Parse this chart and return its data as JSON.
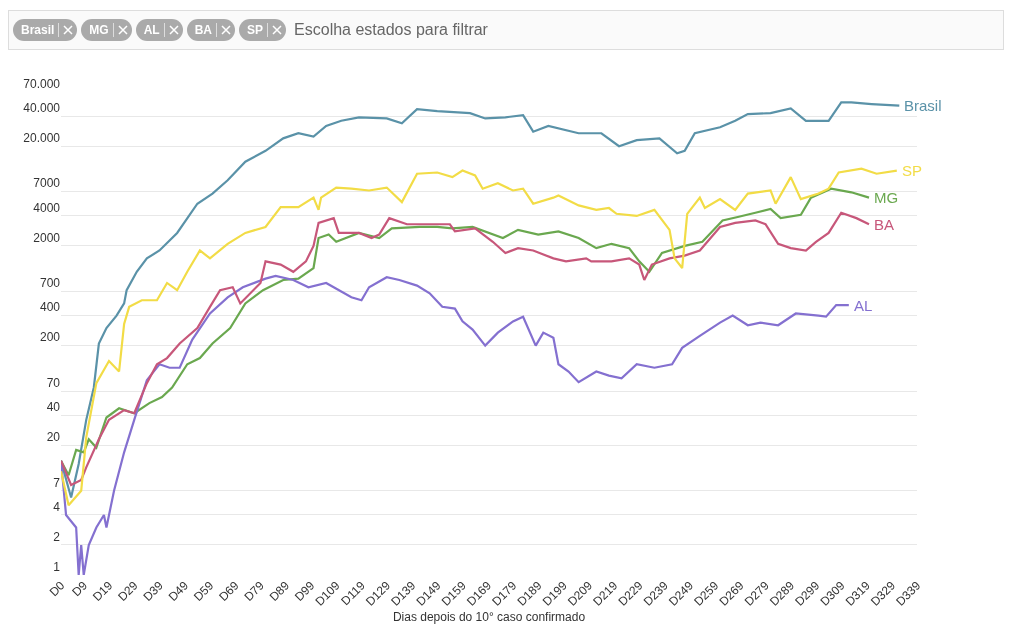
{
  "chart_data": {
    "type": "line",
    "subtitle": "Escolha estados para filtrar",
    "xlabel": "Dias depois do 10° caso confirmado",
    "categories": [
      "D0",
      null,
      null,
      null,
      null,
      null,
      null,
      null,
      null,
      "D9",
      null,
      null,
      null,
      null,
      null,
      null,
      null,
      null,
      null,
      "D19",
      null,
      null,
      null,
      null,
      null,
      null,
      null,
      null,
      null,
      "D29",
      null,
      null,
      null,
      null,
      null,
      null,
      null,
      null,
      null,
      "D39",
      null,
      null,
      null,
      null,
      null,
      null,
      null,
      null,
      null,
      "D49",
      null,
      null,
      null,
      null,
      null,
      null,
      null,
      null,
      null,
      "D59",
      null,
      null,
      null,
      null,
      null,
      null,
      null,
      null,
      null,
      "D69",
      null,
      null,
      null,
      null,
      null,
      null,
      null,
      null,
      null,
      "D79",
      null,
      null,
      null,
      null,
      null,
      null,
      null,
      null,
      null,
      "D89",
      null,
      null,
      null,
      null,
      null,
      null,
      null,
      null,
      null,
      "D99",
      null,
      null,
      null,
      null,
      null,
      null,
      null,
      null,
      null,
      "D109",
      null,
      null,
      null,
      null,
      null,
      null,
      null,
      null,
      null,
      "D119",
      null,
      null,
      null,
      null,
      null,
      null,
      null,
      null,
      null,
      "D129",
      null,
      null,
      null,
      null,
      null,
      null,
      null,
      null,
      null,
      "D139",
      null,
      null,
      null,
      null,
      null,
      null,
      null,
      null,
      null,
      "D149",
      null,
      null,
      null,
      null,
      null,
      null,
      null,
      null,
      null,
      "D159",
      null,
      null,
      null,
      null,
      null,
      null,
      null,
      null,
      null,
      "D169",
      null,
      null,
      null,
      null,
      null,
      null,
      null,
      null,
      null,
      "D179",
      null,
      null,
      null,
      null,
      null,
      null,
      null,
      null,
      null,
      "D189",
      null,
      null,
      null,
      null,
      null,
      null,
      null,
      null,
      null,
      "D199",
      null,
      null,
      null,
      null,
      null,
      null,
      null,
      null,
      null,
      "D209",
      null,
      null,
      null,
      null,
      null,
      null,
      null,
      null,
      null,
      "D219",
      null,
      null,
      null,
      null,
      null,
      null,
      null,
      null,
      null,
      "D229",
      null,
      null,
      null,
      null,
      null,
      null,
      null,
      null,
      null,
      "D239",
      null,
      null,
      null,
      null,
      null,
      null,
      null,
      null,
      null,
      "D249",
      null,
      null,
      null,
      null,
      null,
      null,
      null,
      null,
      null,
      "D259",
      null,
      null,
      null,
      null,
      null,
      null,
      null,
      null,
      null,
      "D269",
      null,
      null,
      null,
      null,
      null,
      null,
      null,
      null,
      null,
      "D279",
      null,
      null,
      null,
      null,
      null,
      null,
      null,
      null,
      null,
      "D289",
      null,
      null,
      null,
      null,
      null,
      null,
      null,
      null,
      null,
      "D299",
      null,
      null,
      null,
      null,
      null,
      null,
      null,
      null,
      null,
      "D309",
      null,
      null,
      null,
      null,
      null,
      null,
      null,
      null,
      null,
      "D319",
      null,
      null,
      null,
      null,
      null,
      null,
      null,
      null,
      null,
      "D329",
      null,
      null,
      null,
      null,
      null,
      null,
      null,
      null,
      null,
      "D339"
    ],
    "ylim": [
      1,
      70000
    ],
    "log": "y",
    "yticks": [
      1,
      2,
      4,
      7,
      20,
      40,
      70,
      200,
      400,
      700,
      2000,
      4000,
      7000,
      {
        "value": 20000,
        "label": "20.000"
      },
      {
        "value": 40000,
        "label": "40.000"
      },
      {
        "value": 70000,
        "label": "70.000"
      }
    ],
    "grid": "y",
    "legend": false,
    "marker": "none",
    "line_style": "solid",
    "series": [
      {
        "name": "Brasil",
        "color": "#5a92a8",
        "values": [
          14,
          null,
          null,
          null,
          6,
          null,
          null,
          13,
          null,
          null,
          36,
          null,
          null,
          76,
          null,
          210,
          null,
          null,
          300,
          null,
          null,
          null,
          400,
          null,
          null,
          530,
          720,
          null,
          null,
          null,
          1100,
          null,
          null,
          null,
          1500,
          null,
          null,
          null,
          null,
          1800,
          null,
          null,
          null,
          null,
          null,
          null,
          2700,
          null,
          null,
          null,
          null,
          null,
          null,
          null,
          5300,
          null,
          null,
          null,
          null,
          null,
          6700,
          null,
          null,
          null,
          null,
          null,
          9100,
          null,
          null,
          null,
          null,
          null,
          null,
          14000,
          null,
          null,
          null,
          null,
          null,
          null,
          null,
          18000,
          null,
          null,
          null,
          null,
          null,
          null,
          24000,
          null,
          null,
          null,
          null,
          null,
          27000,
          null,
          null,
          null,
          null,
          null,
          25000,
          null,
          null,
          null,
          null,
          32000,
          null,
          null,
          null,
          null,
          null,
          36000,
          null,
          null,
          null,
          null,
          null,
          null,
          39000,
          null,
          null,
          null,
          null,
          null,
          null,
          null,
          null,
          null,
          null,
          38000,
          null,
          null,
          null,
          null,
          null,
          34000,
          null,
          null,
          null,
          null,
          null,
          47000,
          null,
          null,
          null,
          null,
          null,
          null,
          null,
          45000,
          null,
          null,
          null,
          null,
          null,
          null,
          null,
          null,
          null,
          null,
          null,
          null,
          43000,
          null,
          null,
          null,
          null,
          null,
          38000,
          null,
          null,
          null,
          null,
          null,
          null,
          null,
          39000,
          null,
          null,
          null,
          null,
          null,
          null,
          41000,
          null,
          null,
          null,
          28000,
          null,
          null,
          null,
          null,
          null,
          32000,
          null,
          null,
          null,
          null,
          null,
          null,
          null,
          null,
          null,
          null,
          null,
          27000,
          null,
          null,
          null,
          null,
          null,
          null,
          null,
          null,
          27000,
          null,
          null,
          null,
          null,
          null,
          null,
          20000,
          null,
          null,
          null,
          null,
          null,
          null,
          23000,
          null,
          null,
          null,
          null,
          null,
          null,
          null,
          null,
          24000,
          null,
          null,
          null,
          null,
          null,
          null,
          17000,
          null,
          null,
          18000,
          null,
          null,
          null,
          27000,
          null,
          null,
          null,
          null,
          null,
          null,
          null,
          null,
          null,
          31000,
          null,
          null,
          null,
          null,
          null,
          36000,
          null,
          null,
          null,
          null,
          42000,
          null,
          null,
          null,
          null,
          null,
          null,
          null,
          null,
          43000,
          null,
          null,
          null,
          null,
          null,
          null,
          null,
          48000,
          null,
          null,
          null,
          null,
          null,
          36000,
          null,
          null,
          null,
          null,
          null,
          null,
          null,
          null,
          36000,
          null,
          null,
          null,
          null,
          55000,
          null,
          null,
          null,
          55000,
          null,
          null,
          null,
          null,
          null,
          null,
          null,
          53000,
          null,
          null,
          null,
          null,
          null,
          null,
          null,
          null,
          null,
          null,
          51000,
          null,
          null,
          null,
          null,
          null,
          null,
          null
        ]
      },
      {
        "name": "MG",
        "color": "#6aa84f",
        "values": [
          14,
          null,
          null,
          10,
          null,
          null,
          18,
          null,
          null,
          17,
          null,
          23,
          null,
          null,
          19,
          null,
          null,
          null,
          38,
          null,
          null,
          null,
          null,
          47,
          null,
          null,
          null,
          null,
          null,
          42,
          null,
          null,
          null,
          null,
          null,
          53,
          null,
          null,
          null,
          null,
          61,
          null,
          null,
          null,
          76,
          null,
          null,
          null,
          null,
          null,
          130,
          null,
          null,
          null,
          null,
          150,
          null,
          null,
          null,
          null,
          210,
          null,
          null,
          null,
          null,
          null,
          null,
          300,
          null,
          null,
          null,
          null,
          null,
          530,
          null,
          null,
          null,
          null,
          null,
          null,
          720,
          null,
          null,
          null,
          null,
          null,
          null,
          null,
          910,
          null,
          null,
          null,
          null,
          null,
          940,
          null,
          null,
          null,
          null,
          null,
          1200,
          null,
          2400,
          null,
          null,
          null,
          2600,
          null,
          null,
          2200,
          null,
          null,
          null,
          null,
          null,
          null,
          null,
          null,
          2700,
          null,
          null,
          null,
          null,
          null,
          null,
          null,
          2400,
          null,
          null,
          null,
          null,
          3000,
          null,
          null,
          null,
          null,
          null,
          null,
          null,
          null,
          null,
          null,
          3100,
          null,
          null,
          null,
          null,
          null,
          null,
          3100,
          null,
          null,
          null,
          null,
          null,
          3000,
          null,
          null,
          null,
          null,
          null,
          null,
          null,
          3100,
          null,
          null,
          null,
          null,
          null,
          null,
          null,
          null,
          null,
          null,
          null,
          2400,
          null,
          null,
          null,
          null,
          null,
          2900,
          null,
          null,
          null,
          null,
          null,
          null,
          null,
          2600,
          null,
          null,
          null,
          null,
          null,
          null,
          null,
          2800,
          null,
          null,
          null,
          null,
          null,
          null,
          null,
          2400,
          null,
          null,
          null,
          null,
          null,
          null,
          1900,
          null,
          null,
          null,
          null,
          null,
          2100,
          null,
          null,
          null,
          null,
          null,
          null,
          1900,
          null,
          null,
          null,
          1400,
          null,
          null,
          null,
          1100,
          null,
          null,
          null,
          null,
          1700,
          null,
          null,
          null,
          null,
          null,
          null,
          null,
          null,
          2000,
          null,
          null,
          null,
          null,
          null,
          null,
          2200,
          null,
          null,
          null,
          null,
          null,
          null,
          null,
          3600,
          null,
          null,
          null,
          null,
          null,
          3900,
          null,
          null,
          null,
          null,
          null,
          null,
          4300,
          null,
          null,
          null,
          null,
          null,
          4700,
          null,
          null,
          null,
          3800,
          null,
          null,
          null,
          null,
          null,
          null,
          null,
          4100,
          null,
          null,
          null,
          6100,
          null,
          null,
          null,
          null,
          null,
          null,
          null,
          7500,
          null,
          null,
          null,
          null,
          null,
          null,
          null,
          6900,
          null,
          null,
          null,
          null,
          null,
          null,
          6100,
          null,
          null,
          null,
          null,
          null,
          null,
          null,
          null,
          null,
          null,
          null,
          null,
          null,
          null,
          null,
          null,
          null,
          null,
          null
        ]
      },
      {
        "name": "AL",
        "color": "#8470d0",
        "values": [
          14,
          null,
          4,
          null,
          null,
          null,
          3,
          1,
          2,
          1,
          null,
          2,
          null,
          null,
          3,
          null,
          null,
          4,
          3,
          null,
          null,
          7,
          null,
          null,
          null,
          17,
          null,
          null,
          null,
          36,
          null,
          null,
          null,
          null,
          90,
          null,
          null,
          null,
          null,
          130,
          null,
          null,
          null,
          120,
          null,
          null,
          null,
          120,
          null,
          null,
          null,
          null,
          230,
          null,
          null,
          null,
          null,
          null,
          null,
          420,
          null,
          null,
          null,
          null,
          null,
          null,
          610,
          null,
          null,
          null,
          null,
          null,
          770,
          null,
          null,
          null,
          null,
          null,
          null,
          null,
          null,
          940,
          null,
          null,
          null,
          1000,
          null,
          null,
          null,
          null,
          null,
          null,
          910,
          null,
          null,
          null,
          null,
          null,
          770,
          null,
          null,
          null,
          null,
          null,
          null,
          850,
          null,
          null,
          null,
          null,
          null,
          null,
          null,
          null,
          null,
          610,
          null,
          null,
          null,
          570,
          null,
          null,
          770,
          null,
          null,
          null,
          null,
          null,
          null,
          970,
          null,
          null,
          null,
          null,
          910,
          null,
          null,
          null,
          null,
          null,
          null,
          800,
          null,
          null,
          null,
          null,
          670,
          null,
          null,
          null,
          null,
          490,
          null,
          null,
          null,
          null,
          470,
          null,
          null,
          350,
          null,
          null,
          null,
          290,
          null,
          null,
          null,
          null,
          200,
          null,
          null,
          null,
          null,
          270,
          null,
          null,
          null,
          null,
          null,
          350,
          null,
          null,
          null,
          390,
          null,
          null,
          null,
          null,
          200,
          null,
          null,
          270,
          null,
          null,
          null,
          240,
          null,
          130,
          null,
          null,
          null,
          110,
          null,
          null,
          null,
          86,
          null,
          null,
          null,
          null,
          null,
          null,
          110,
          null,
          null,
          null,
          null,
          100,
          null,
          null,
          null,
          null,
          94,
          null,
          null,
          null,
          null,
          null,
          130,
          null,
          null,
          null,
          null,
          null,
          null,
          120,
          null,
          null,
          null,
          null,
          null,
          null,
          130,
          null,
          null,
          null,
          190,
          null,
          null,
          null,
          null,
          null,
          null,
          250,
          null,
          null,
          null,
          null,
          null,
          null,
          null,
          340,
          null,
          null,
          null,
          null,
          400,
          null,
          null,
          null,
          null,
          null,
          320,
          null,
          null,
          null,
          null,
          340,
          null,
          null,
          null,
          null,
          null,
          null,
          320,
          null,
          null,
          null,
          null,
          null,
          null,
          420,
          null,
          null,
          null,
          null,
          null,
          null,
          null,
          null,
          400,
          null,
          null,
          390,
          null,
          null,
          null,
          510,
          null,
          null,
          null,
          null,
          510,
          null,
          null,
          null,
          null,
          null,
          null,
          null,
          null,
          null,
          null,
          null,
          null,
          null,
          null,
          null,
          null,
          null,
          null,
          null,
          null,
          null,
          null,
          null,
          null,
          null,
          null,
          null
        ]
      },
      {
        "name": "BA",
        "color": "#c7577a",
        "values": [
          14,
          null,
          null,
          null,
          8,
          null,
          null,
          null,
          9,
          null,
          12,
          null,
          null,
          null,
          null,
          23,
          null,
          null,
          null,
          36,
          null,
          null,
          null,
          null,
          null,
          45,
          null,
          null,
          null,
          42,
          null,
          null,
          null,
          null,
          84,
          null,
          null,
          null,
          130,
          null,
          null,
          null,
          150,
          null,
          null,
          null,
          null,
          210,
          null,
          null,
          null,
          null,
          null,
          null,
          300,
          null,
          null,
          null,
          null,
          490,
          null,
          null,
          null,
          720,
          null,
          null,
          null,
          null,
          770,
          null,
          null,
          530,
          null,
          null,
          null,
          null,
          null,
          null,
          null,
          850,
          null,
          1400,
          null,
          null,
          null,
          null,
          null,
          1300,
          null,
          null,
          null,
          null,
          1100,
          null,
          null,
          null,
          null,
          1400,
          null,
          null,
          2000,
          null,
          3400,
          null,
          null,
          null,
          null,
          null,
          3800,
          null,
          2700,
          null,
          null,
          null,
          null,
          null,
          null,
          null,
          2700,
          null,
          null,
          null,
          null,
          2400,
          null,
          null,
          2600,
          null,
          null,
          null,
          3800,
          null,
          null,
          null,
          null,
          null,
          null,
          3300,
          null,
          null,
          null,
          null,
          null,
          null,
          null,
          null,
          null,
          3300,
          null,
          null,
          null,
          null,
          null,
          null,
          3300,
          null,
          2800,
          null,
          null,
          null,
          null,
          null,
          null,
          null,
          3000,
          null,
          null,
          null,
          null,
          null,
          null,
          2200,
          null,
          null,
          null,
          null,
          1700,
          null,
          null,
          null,
          null,
          1900,
          null,
          null,
          null,
          null,
          null,
          1800,
          null,
          null,
          null,
          null,
          null,
          null,
          null,
          1500,
          null,
          null,
          null,
          null,
          1400,
          null,
          null,
          null,
          null,
          null,
          null,
          null,
          1500,
          null,
          1400,
          null,
          null,
          null,
          null,
          null,
          null,
          null,
          1400,
          null,
          null,
          null,
          null,
          null,
          null,
          1500,
          null,
          null,
          null,
          1300,
          null,
          910,
          null,
          null,
          1300,
          null,
          null,
          null,
          null,
          null,
          null,
          1500,
          null,
          null,
          null,
          null,
          null,
          1600,
          null,
          null,
          null,
          null,
          null,
          1800,
          null,
          null,
          null,
          null,
          null,
          null,
          null,
          3100,
          null,
          null,
          null,
          null,
          null,
          3400,
          null,
          null,
          null,
          null,
          null,
          null,
          null,
          3600,
          null,
          null,
          null,
          3300,
          null,
          null,
          null,
          null,
          2100,
          null,
          null,
          null,
          null,
          1900,
          null,
          null,
          null,
          null,
          null,
          1800,
          null,
          null,
          null,
          2200,
          null,
          null,
          null,
          null,
          2700,
          null,
          null,
          null,
          null,
          4300,
          null,
          null,
          null,
          null,
          null,
          3800,
          null,
          null,
          null,
          null,
          3300,
          null,
          null,
          null,
          null,
          null,
          null,
          null,
          null,
          null,
          null,
          null,
          null,
          null,
          null,
          null,
          null,
          null,
          null,
          null
        ]
      },
      {
        "name": "SP",
        "color": "#f2dc46",
        "values": [
          11,
          null,
          null,
          5,
          null,
          null,
          null,
          null,
          7,
          null,
          24,
          null,
          null,
          null,
          84,
          null,
          null,
          null,
          null,
          140,
          null,
          null,
          null,
          110,
          null,
          330,
          null,
          490,
          null,
          null,
          null,
          null,
          570,
          null,
          null,
          null,
          null,
          null,
          570,
          null,
          null,
          null,
          850,
          null,
          null,
          null,
          720,
          null,
          null,
          null,
          1100,
          null,
          null,
          null,
          null,
          1800,
          null,
          null,
          null,
          1500,
          null,
          null,
          null,
          null,
          null,
          null,
          2100,
          null,
          null,
          null,
          null,
          null,
          null,
          2700,
          null,
          null,
          null,
          null,
          null,
          null,
          null,
          3100,
          null,
          null,
          null,
          null,
          null,
          4900,
          null,
          null,
          null,
          null,
          null,
          null,
          4900,
          null,
          null,
          null,
          null,
          null,
          6100,
          null,
          4600,
          6100,
          null,
          null,
          null,
          null,
          null,
          7700,
          null,
          null,
          null,
          null,
          null,
          7500,
          null,
          null,
          null,
          null,
          null,
          null,
          7200,
          null,
          null,
          null,
          null,
          null,
          null,
          7700,
          null,
          null,
          null,
          null,
          null,
          5500,
          null,
          null,
          null,
          null,
          null,
          10600,
          null,
          null,
          null,
          null,
          null,
          null,
          null,
          10900,
          null,
          null,
          null,
          null,
          null,
          9800,
          null,
          null,
          null,
          11400,
          null,
          null,
          null,
          null,
          10200,
          null,
          null,
          7500,
          null,
          null,
          null,
          null,
          null,
          8500,
          null,
          null,
          null,
          null,
          null,
          7200,
          null,
          null,
          null,
          7500,
          null,
          null,
          null,
          5300,
          null,
          null,
          null,
          null,
          null,
          null,
          null,
          6100,
          null,
          6400,
          null,
          null,
          null,
          null,
          null,
          null,
          null,
          5100,
          null,
          null,
          null,
          null,
          null,
          null,
          4600,
          null,
          null,
          null,
          null,
          4800,
          null,
          null,
          4200,
          null,
          null,
          null,
          null,
          null,
          null,
          null,
          4000,
          null,
          null,
          null,
          null,
          null,
          null,
          4600,
          null,
          null,
          null,
          null,
          null,
          2900,
          null,
          1500,
          null,
          null,
          1200,
          null,
          4200,
          null,
          null,
          null,
          null,
          6100,
          null,
          4800,
          null,
          null,
          null,
          null,
          null,
          5900,
          null,
          null,
          null,
          null,
          null,
          4600,
          null,
          null,
          null,
          null,
          6700,
          null,
          null,
          null,
          null,
          null,
          null,
          null,
          null,
          7200,
          null,
          5300,
          null,
          null,
          null,
          null,
          null,
          9800,
          null,
          null,
          null,
          5900,
          null,
          null,
          null,
          null,
          null,
          null,
          6700,
          null,
          null,
          null,
          7500,
          null,
          null,
          null,
          10900,
          null,
          null,
          null,
          null,
          null,
          null,
          null,
          null,
          11900,
          null,
          null,
          null,
          null,
          null,
          10600,
          null,
          null,
          null,
          null,
          null,
          null,
          null,
          11400,
          null,
          null,
          null,
          null,
          null,
          null,
          null,
          null
        ]
      }
    ]
  }
}
